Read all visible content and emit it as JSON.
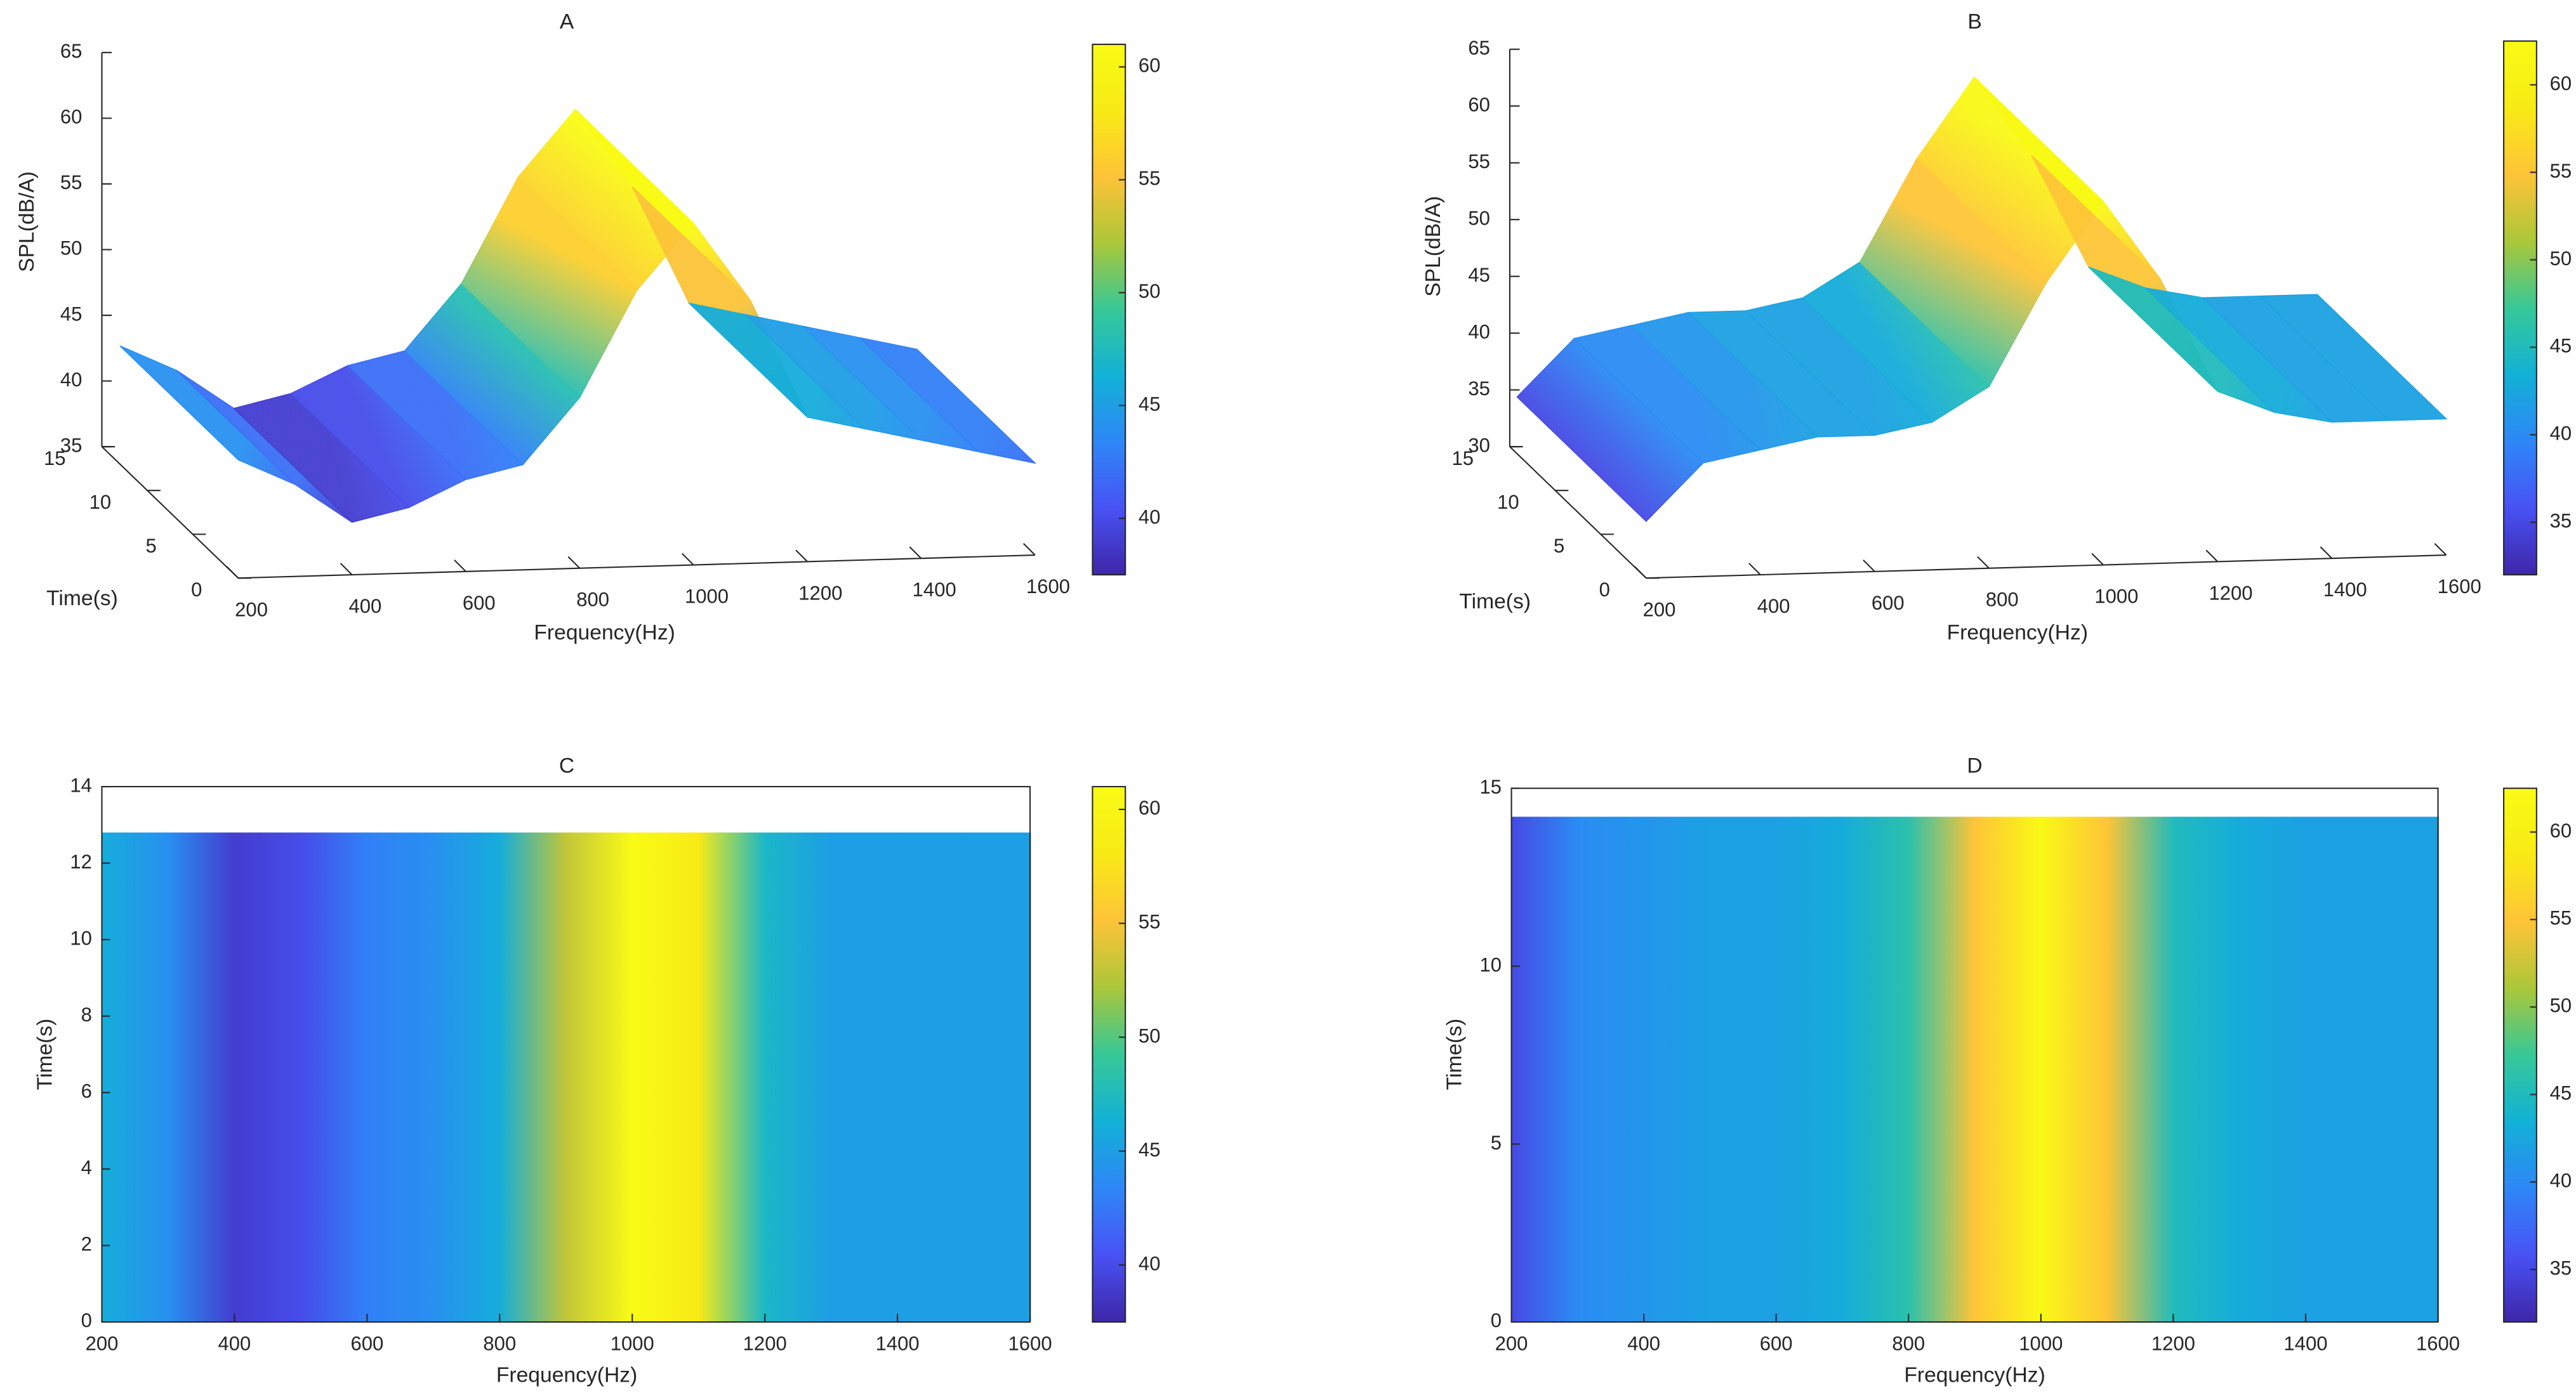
{
  "chart_data": [
    {
      "type": "surface3d",
      "title": "A",
      "x_label": "Frequency(Hz)",
      "y_label": "Time(s)",
      "z_label": "SPL(dB/A)",
      "x": [
        200,
        300,
        400,
        500,
        600,
        700,
        800,
        900,
        1000,
        1100,
        1200,
        1300,
        1400,
        1500,
        1600
      ],
      "values": [
        44,
        42,
        39,
        40,
        42,
        43,
        48,
        56,
        61,
        55,
        46,
        45,
        44,
        43,
        42
      ],
      "time_range": [
        0,
        13
      ],
      "xlim": [
        200,
        1600
      ],
      "xticks": [
        200,
        400,
        600,
        800,
        1000,
        1200,
        1400,
        1600
      ],
      "ylim": [
        0,
        15
      ],
      "yticks": [
        0,
        5,
        10,
        15
      ],
      "zlim": [
        35,
        65
      ],
      "zticks": [
        35,
        40,
        45,
        50,
        55,
        60,
        65
      ],
      "clim": [
        37.5,
        61
      ],
      "cticks": [
        40,
        45,
        50,
        55,
        60
      ]
    },
    {
      "type": "surface3d",
      "title": "B",
      "x_label": "Frequency(Hz)",
      "y_label": "Time(s)",
      "z_label": "SPL(dB/A)",
      "x": [
        200,
        300,
        400,
        500,
        600,
        700,
        800,
        900,
        1000,
        1100,
        1200,
        1300,
        1400,
        1500,
        1600
      ],
      "values": [
        35,
        40,
        41,
        42,
        42,
        43,
        46,
        55,
        62,
        55,
        45,
        43,
        42,
        42,
        42
      ],
      "time_range": [
        0,
        14.2
      ],
      "xlim": [
        200,
        1600
      ],
      "xticks": [
        200,
        400,
        600,
        800,
        1000,
        1200,
        1400,
        1600
      ],
      "ylim": [
        0,
        15
      ],
      "yticks": [
        0,
        5,
        10,
        15
      ],
      "zlim": [
        30,
        65
      ],
      "zticks": [
        30,
        35,
        40,
        45,
        50,
        55,
        60,
        65
      ],
      "clim": [
        32,
        62.5
      ],
      "cticks": [
        35,
        40,
        45,
        50,
        55,
        60
      ]
    },
    {
      "type": "heatmap",
      "title": "C",
      "x_label": "Frequency(Hz)",
      "y_label": "Time(s)",
      "x": [
        200,
        300,
        400,
        500,
        600,
        700,
        800,
        900,
        1000,
        1100,
        1200,
        1300,
        1400,
        1500,
        1600
      ],
      "values": [
        46,
        44,
        39,
        40,
        43,
        44,
        46,
        53,
        61,
        58,
        47,
        45,
        45,
        45,
        45
      ],
      "time_range": [
        0,
        12.8
      ],
      "xlim": [
        200,
        1600
      ],
      "xticks": [
        200,
        400,
        600,
        800,
        1000,
        1200,
        1400,
        1600
      ],
      "ylim": [
        0,
        14
      ],
      "yticks": [
        0,
        2,
        4,
        6,
        8,
        10,
        12,
        14
      ],
      "clim": [
        37.5,
        61
      ],
      "cticks": [
        40,
        45,
        50,
        55,
        60
      ]
    },
    {
      "type": "heatmap",
      "title": "D",
      "x_label": "Frequency(Hz)",
      "y_label": "Time(s)",
      "x": [
        200,
        300,
        400,
        500,
        600,
        700,
        800,
        900,
        1000,
        1100,
        1200,
        1300,
        1400,
        1500,
        1600
      ],
      "values": [
        35,
        40,
        41,
        42,
        42,
        43,
        46,
        55,
        62,
        55,
        45,
        43,
        42,
        42,
        42
      ],
      "time_range": [
        0,
        14.2
      ],
      "xlim": [
        200,
        1600
      ],
      "xticks": [
        200,
        400,
        600,
        800,
        1000,
        1200,
        1400,
        1600
      ],
      "ylim": [
        0,
        15
      ],
      "yticks": [
        0,
        5,
        10,
        15
      ],
      "clim": [
        32,
        62.5
      ],
      "cticks": [
        35,
        40,
        45,
        50,
        55,
        60
      ]
    }
  ]
}
